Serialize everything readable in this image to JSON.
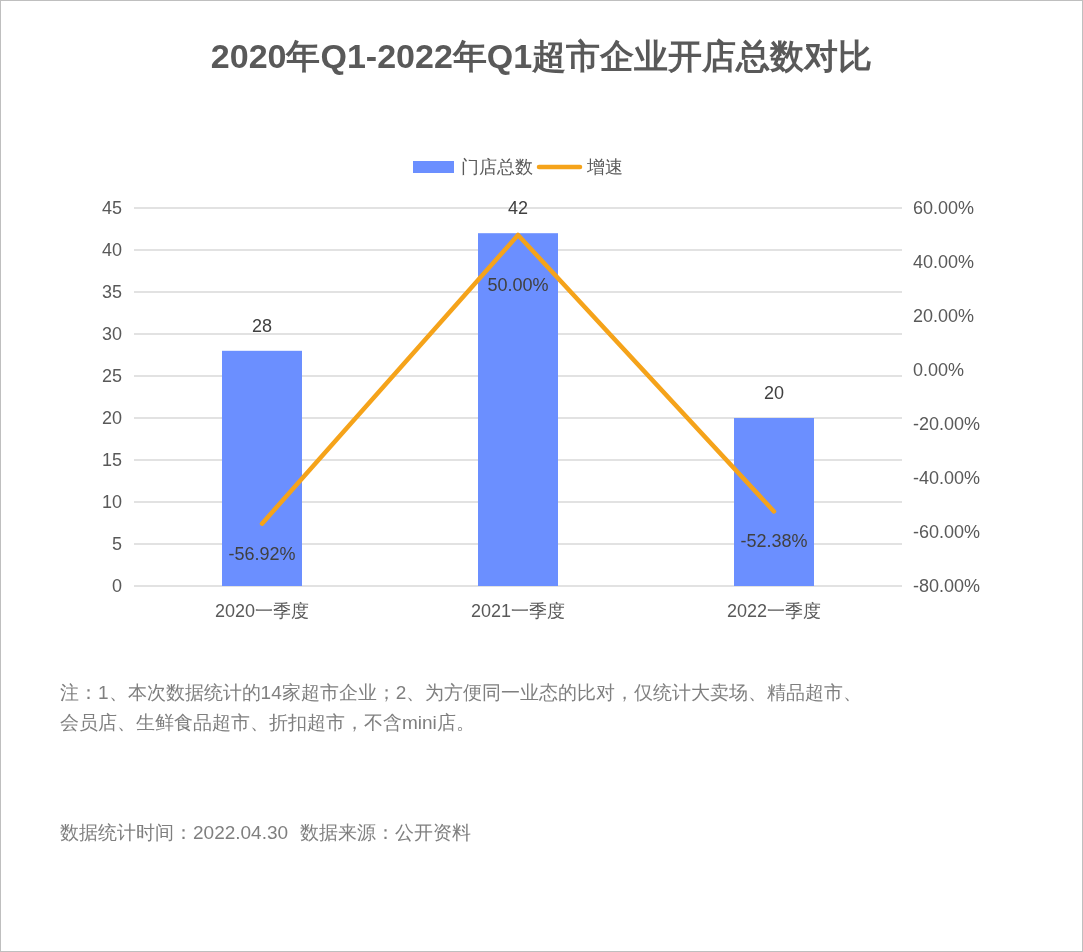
{
  "chart_data": {
    "type": "bar",
    "title": "2020年Q1-2022年Q1超市企业开店总数对比",
    "categories": [
      "2020一季度",
      "2021一季度",
      "2022一季度"
    ],
    "series": [
      {
        "name": "门店总数",
        "color": "#6b8fff",
        "values": [
          28,
          42,
          20
        ],
        "value_labels": [
          "28",
          "42",
          "20"
        ]
      },
      {
        "name": "增速",
        "type": "line",
        "axis": "y2",
        "color": "#f5a31a",
        "values": [
          -56.92,
          50.0,
          -52.38
        ],
        "value_labels": [
          "-56.92%",
          "50.00%",
          "-52.38%"
        ]
      }
    ],
    "ylim": [
      0,
      45
    ],
    "yticks": [
      0,
      5,
      10,
      15,
      20,
      25,
      30,
      35,
      40,
      45
    ],
    "y2lim": [
      -80,
      60
    ],
    "y2ticks": [
      {
        "value": -80,
        "label": "-80.00%"
      },
      {
        "value": -60,
        "label": "-60.00%"
      },
      {
        "value": -40,
        "label": "-40.00%"
      },
      {
        "value": -20,
        "label": "-20.00%"
      },
      {
        "value": 0,
        "label": "0.00%"
      },
      {
        "value": 20,
        "label": "20.00%"
      },
      {
        "value": 40,
        "label": "40.00%"
      },
      {
        "value": 60,
        "label": "60.00%"
      }
    ],
    "grid": "y",
    "legend": "top",
    "annotations": [
      "注：1、本次数据统计的14家超市企业；2、为方便同一业态的比对，仅统计大卖场、精品超市、会员店、生鲜食品超市、折扣超市，不含mini店。",
      "数据统计时间：2022.04.30",
      "数据来源：公开资料"
    ]
  }
}
